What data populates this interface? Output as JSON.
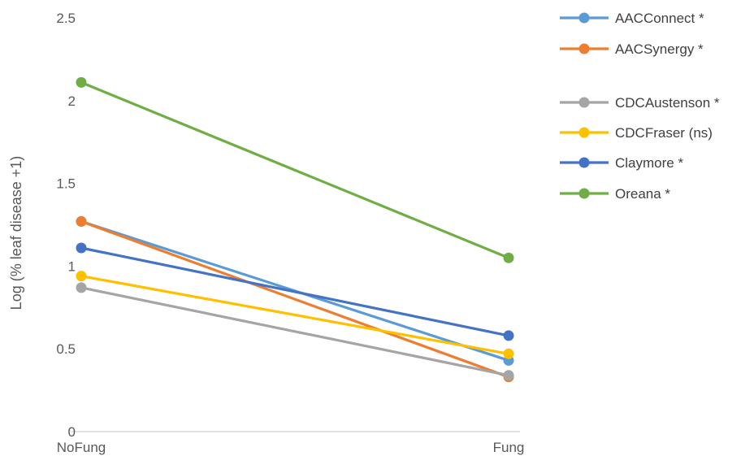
{
  "chart_data": {
    "type": "line",
    "title": "",
    "xlabel": "",
    "ylabel": "Log (% leaf disease +1)",
    "categories": [
      "NoFung",
      "Fung"
    ],
    "ylim": [
      0,
      2.5
    ],
    "yticks": [
      0,
      0.5,
      1,
      1.5,
      2,
      2.5
    ],
    "ytick_labels": [
      "0",
      "0.5",
      "1",
      "1.5",
      "2",
      "2.5"
    ],
    "grid": false,
    "legend_position": "right",
    "series": [
      {
        "name": "AACConnect *",
        "color": "#5B9BD5",
        "values": [
          1.27,
          0.43
        ]
      },
      {
        "name": "AACSynergy *",
        "color": "#ED7D31",
        "values": [
          1.27,
          0.33
        ]
      },
      {
        "name": "CDCAustenson *",
        "color": "#A5A5A5",
        "values": [
          0.87,
          0.34
        ]
      },
      {
        "name": "CDCFraser (ns)",
        "color": "#FFC000",
        "values": [
          0.94,
          0.47
        ]
      },
      {
        "name": "Claymore *",
        "color": "#4472C4",
        "values": [
          1.11,
          0.58
        ]
      },
      {
        "name": "Oreana *",
        "color": "#70AD47",
        "values": [
          2.11,
          1.05
        ]
      }
    ]
  }
}
